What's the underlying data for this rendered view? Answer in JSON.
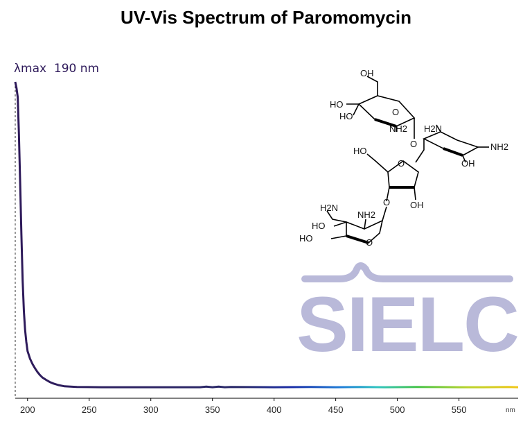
{
  "chart_data": {
    "type": "line",
    "title": "UV-Vis Spectrum of Paromomycin",
    "annotation": "λmax  190 nm",
    "lambda_max": 190,
    "xlabel": "",
    "x_unit_label": "nm",
    "ylabel": "",
    "xlim": [
      190,
      598
    ],
    "ylim": [
      0,
      1
    ],
    "x_ticks": [
      200,
      250,
      300,
      350,
      400,
      450,
      500,
      550
    ],
    "grid": false,
    "legend": "none",
    "line_color": "#2e1a5a",
    "series": [
      {
        "x": [
          190,
          191,
          192,
          193,
          194,
          195,
          196,
          197,
          198,
          199,
          200,
          202,
          204,
          206,
          208,
          210,
          212,
          215,
          218,
          221,
          225,
          230,
          240,
          260,
          300,
          340,
          345,
          350,
          355,
          360,
          365,
          400,
          430,
          450,
          470,
          490,
          515,
          550,
          570,
          590,
          598
        ],
        "y": [
          1.0,
          0.98,
          0.95,
          0.83,
          0.67,
          0.5,
          0.35,
          0.25,
          0.19,
          0.15,
          0.12,
          0.095,
          0.078,
          0.064,
          0.052,
          0.042,
          0.034,
          0.026,
          0.019,
          0.014,
          0.009,
          0.005,
          0.003,
          0.002,
          0.002,
          0.002,
          0.004,
          0.002,
          0.004,
          0.002,
          0.003,
          0.002,
          0.003,
          0.002,
          0.003,
          0.002,
          0.003,
          0.002,
          0.002,
          0.003,
          0.002
        ]
      }
    ]
  },
  "structure": {
    "labels": [
      "OH",
      "HO",
      "HO",
      "NH2",
      "H2N",
      "O",
      "O",
      "NH2",
      "OH",
      "HO",
      "O",
      "O",
      "OH",
      "H2N",
      "NH2",
      "HO",
      "HO",
      "O"
    ]
  },
  "watermark": {
    "text": "SIELC",
    "color": "#b9b9d9"
  }
}
